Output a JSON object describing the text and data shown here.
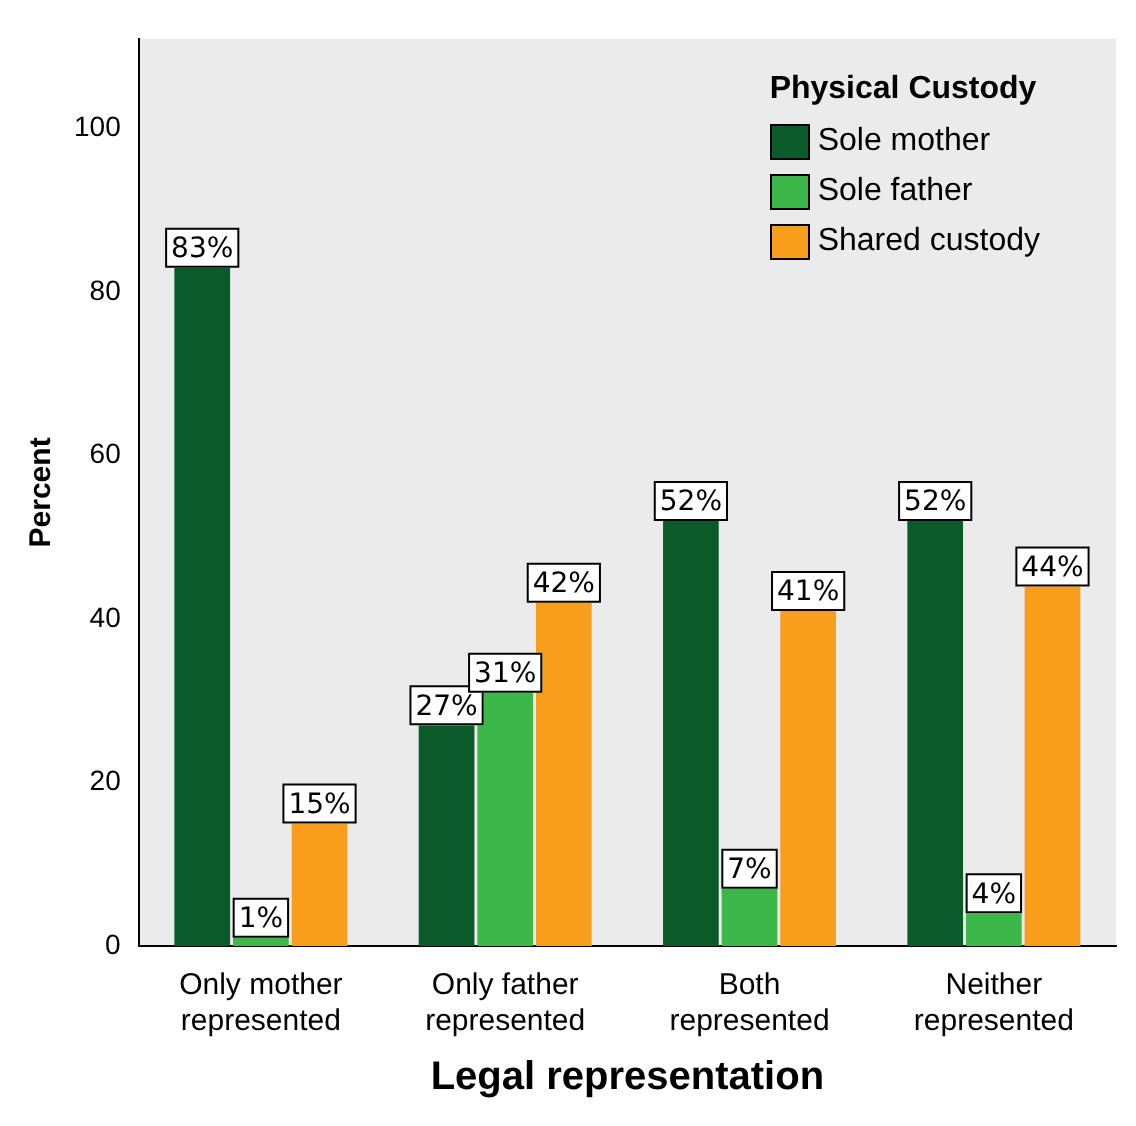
{
  "chart_data": {
    "type": "bar",
    "xlabel": "Legal representation",
    "ylabel": "Percent",
    "legend_title": "Physical Custody",
    "legend": "top right",
    "grid": false,
    "categories": [
      "Only mother represented",
      "Only father represented",
      "Both represented",
      "Neither represented"
    ],
    "series": [
      {
        "name": "Sole mother",
        "color": "#0b5a2a",
        "values": [
          83,
          27,
          52,
          52
        ],
        "value_labels": [
          "83%",
          "27%",
          "52%",
          "52%"
        ]
      },
      {
        "name": "Sole father",
        "color": "#3cb84a",
        "values": [
          1,
          31,
          7,
          4
        ],
        "value_labels": [
          "1%",
          "31%",
          "7%",
          "4%"
        ]
      },
      {
        "name": "Shared custody",
        "color": "#f99d1c",
        "values": [
          15,
          42,
          41,
          44
        ],
        "value_labels": [
          "15%",
          "42%",
          "41%",
          "44%"
        ]
      }
    ],
    "ylim": [
      0,
      111
    ],
    "yticks": [
      0,
      20,
      40,
      60,
      80,
      100
    ]
  }
}
